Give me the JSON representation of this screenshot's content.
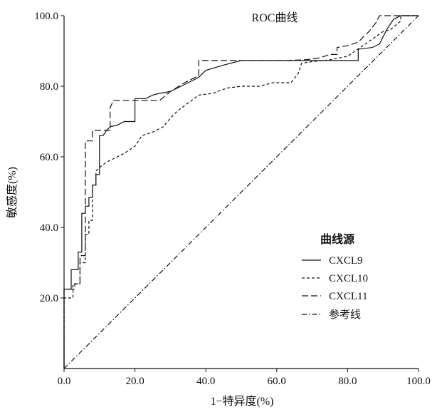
{
  "chart_data": {
    "type": "line",
    "title": "ROC曲线",
    "xlabel": "1−特异度(%)",
    "ylabel": "敏感度(%)",
    "xlim": [
      0,
      100
    ],
    "ylim": [
      0,
      100
    ],
    "x_ticks": [
      "0.0",
      "20.0",
      "40.0",
      "60.0",
      "80.0",
      "100.0"
    ],
    "y_ticks": [
      "20.0",
      "40.0",
      "60.0",
      "80.0",
      "100.0"
    ],
    "grid": false,
    "legend": {
      "title": "曲线源",
      "position": "right-middle",
      "entries": [
        "CXCL9",
        "CXCL10",
        "CXCL11",
        "参考线"
      ]
    },
    "series": [
      {
        "name": "CXCL9",
        "line_style": "solid",
        "points": [
          [
            0,
            0
          ],
          [
            0,
            22.5
          ],
          [
            2,
            22.5
          ],
          [
            2,
            28
          ],
          [
            4,
            28
          ],
          [
            4,
            33
          ],
          [
            5,
            33
          ],
          [
            5,
            44
          ],
          [
            6,
            44
          ],
          [
            6,
            46
          ],
          [
            7,
            46
          ],
          [
            7,
            48.5
          ],
          [
            8,
            48.5
          ],
          [
            8,
            52
          ],
          [
            9,
            52
          ],
          [
            9,
            55
          ],
          [
            10,
            55
          ],
          [
            10,
            66
          ],
          [
            11,
            66
          ],
          [
            12,
            67.5
          ],
          [
            13,
            68.5
          ],
          [
            15,
            69
          ],
          [
            17,
            70
          ],
          [
            20,
            70
          ],
          [
            20,
            76.5
          ],
          [
            23,
            76.5
          ],
          [
            25,
            77.5
          ],
          [
            27,
            78
          ],
          [
            30,
            78.5
          ],
          [
            34,
            80.5
          ],
          [
            38,
            82.5
          ],
          [
            40,
            84.5
          ],
          [
            45,
            86
          ],
          [
            50,
            87.3
          ],
          [
            60,
            87.3
          ],
          [
            70,
            87.3
          ],
          [
            78,
            87.3
          ],
          [
            83,
            87.3
          ],
          [
            83,
            90.5
          ],
          [
            87,
            91
          ],
          [
            89,
            92
          ],
          [
            91,
            96
          ],
          [
            93,
            99
          ],
          [
            95,
            100
          ],
          [
            100,
            100
          ]
        ]
      },
      {
        "name": "CXCL10",
        "line_style": "dashed-short",
        "points": [
          [
            0,
            0
          ],
          [
            0,
            20
          ],
          [
            2.5,
            20
          ],
          [
            2.5,
            24
          ],
          [
            4.5,
            24
          ],
          [
            4.5,
            30
          ],
          [
            6,
            30
          ],
          [
            6,
            38
          ],
          [
            7,
            38
          ],
          [
            7,
            42
          ],
          [
            8,
            42
          ],
          [
            8,
            52
          ],
          [
            9,
            52
          ],
          [
            9,
            56
          ],
          [
            10,
            57
          ],
          [
            12,
            58.5
          ],
          [
            14,
            59.5
          ],
          [
            17,
            61
          ],
          [
            20,
            63
          ],
          [
            22,
            66
          ],
          [
            25,
            67
          ],
          [
            28,
            68.5
          ],
          [
            30,
            71
          ],
          [
            32,
            73
          ],
          [
            34,
            74.5
          ],
          [
            36,
            76
          ],
          [
            38,
            77.5
          ],
          [
            42,
            78
          ],
          [
            46,
            79.5
          ],
          [
            50,
            80
          ],
          [
            55,
            80
          ],
          [
            59,
            81
          ],
          [
            64,
            81
          ],
          [
            66,
            83.5
          ],
          [
            67,
            86.5
          ],
          [
            70,
            87
          ],
          [
            75,
            87.5
          ],
          [
            80,
            88.5
          ],
          [
            85,
            92
          ],
          [
            90,
            95.5
          ],
          [
            92,
            96
          ],
          [
            95,
            98.5
          ],
          [
            95,
            100
          ],
          [
            100,
            100
          ]
        ]
      },
      {
        "name": "CXCL11",
        "line_style": "dashed-long",
        "points": [
          [
            0,
            0
          ],
          [
            0,
            22.5
          ],
          [
            3,
            22.5
          ],
          [
            3,
            24
          ],
          [
            4.5,
            24
          ],
          [
            4.5,
            32
          ],
          [
            6,
            32
          ],
          [
            6,
            64.5
          ],
          [
            8,
            64.5
          ],
          [
            8,
            67.5
          ],
          [
            10,
            67.5
          ],
          [
            13,
            67.5
          ],
          [
            13,
            74
          ],
          [
            14,
            76
          ],
          [
            16,
            76
          ],
          [
            21,
            76
          ],
          [
            27,
            76
          ],
          [
            30,
            78.5
          ],
          [
            34,
            81
          ],
          [
            38,
            83
          ],
          [
            38,
            87.3
          ],
          [
            45,
            87.3
          ],
          [
            50,
            87.3
          ],
          [
            55,
            87.3
          ],
          [
            62,
            87.3
          ],
          [
            68,
            87.5
          ],
          [
            72,
            88
          ],
          [
            75,
            89
          ],
          [
            77,
            89
          ],
          [
            77,
            91
          ],
          [
            80,
            91.5
          ],
          [
            83,
            92.5
          ],
          [
            86,
            95.5
          ],
          [
            88,
            98
          ],
          [
            89,
            100
          ],
          [
            100,
            100
          ]
        ]
      },
      {
        "name": "参考线",
        "line_style": "dash-dot",
        "points": [
          [
            0,
            0
          ],
          [
            100,
            100
          ]
        ]
      }
    ]
  }
}
